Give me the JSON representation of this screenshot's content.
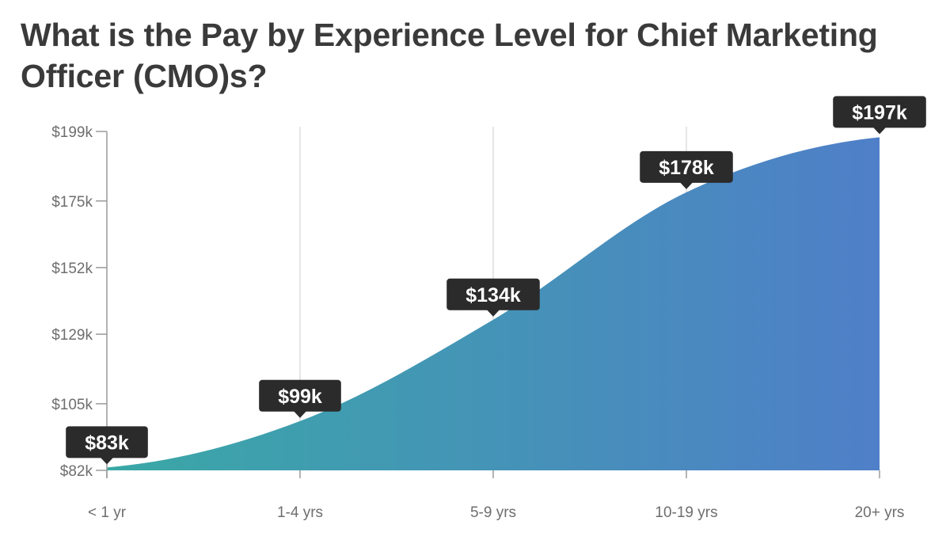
{
  "title": "What is the Pay by Experience Level for Chief Marketing Officer (CMO)s?",
  "colors": {
    "gradient_start": "#3aa8a6",
    "gradient_end": "#4f7fc8",
    "callout_bg": "#2b2b2b",
    "gridline": "#dddddd",
    "axis": "#9a9a9a"
  },
  "chart_data": {
    "type": "area",
    "categories": [
      "< 1 yr",
      "1-4 yrs",
      "5-9 yrs",
      "10-19 yrs",
      "20+ yrs"
    ],
    "values": [
      83,
      99,
      134,
      178,
      197
    ],
    "value_labels": [
      "$83k",
      "$99k",
      "$134k",
      "$178k",
      "$197k"
    ],
    "y_ticks": [
      82,
      105,
      129,
      152,
      175,
      199
    ],
    "y_tick_labels": [
      "$82k",
      "$105k",
      "$129k",
      "$152k",
      "$175k",
      "$199k"
    ],
    "ylim": [
      82,
      199
    ],
    "grid": "vertical",
    "xlabel": "",
    "ylabel": ""
  }
}
